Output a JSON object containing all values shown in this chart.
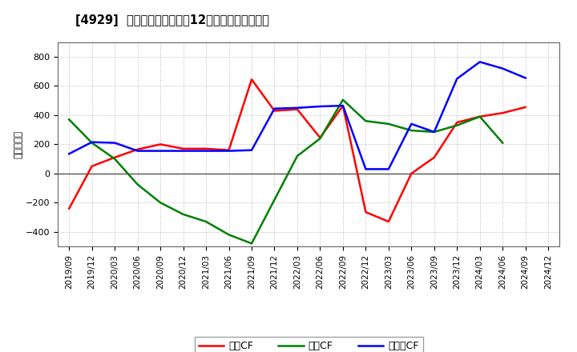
{
  "title": "[4929]  キャッシュフローの12か月移動合計の推移",
  "ylabel": "（百万円）",
  "ylim": [
    -500,
    900
  ],
  "yticks": [
    -400,
    -200,
    0,
    200,
    400,
    600,
    800
  ],
  "x_labels": [
    "2019/09",
    "2019/12",
    "2020/03",
    "2020/06",
    "2020/09",
    "2020/12",
    "2021/03",
    "2021/06",
    "2021/09",
    "2021/12",
    "2022/03",
    "2022/06",
    "2022/09",
    "2022/12",
    "2023/03",
    "2023/06",
    "2023/09",
    "2023/12",
    "2024/03",
    "2024/06",
    "2024/09",
    "2024/12"
  ],
  "operating_cf": [
    -240,
    50,
    110,
    165,
    200,
    170,
    170,
    160,
    645,
    430,
    440,
    245,
    465,
    -265,
    -330,
    0,
    110,
    350,
    390,
    415,
    455,
    null
  ],
  "investing_cf": [
    370,
    210,
    100,
    -75,
    -200,
    -280,
    -330,
    -420,
    -480,
    null,
    120,
    240,
    505,
    360,
    340,
    295,
    285,
    330,
    390,
    210,
    null,
    null
  ],
  "free_cf": [
    135,
    215,
    210,
    155,
    155,
    155,
    155,
    155,
    160,
    445,
    450,
    460,
    465,
    30,
    30,
    340,
    285,
    650,
    765,
    720,
    655,
    null
  ],
  "color_operating": "#ff0000",
  "color_investing": "#008000",
  "color_free": "#0000ff",
  "legend_labels": [
    "営業CF",
    "投資CF",
    "フリーCF"
  ],
  "background_color": "#ffffff",
  "grid_color": "#aaaaaa"
}
